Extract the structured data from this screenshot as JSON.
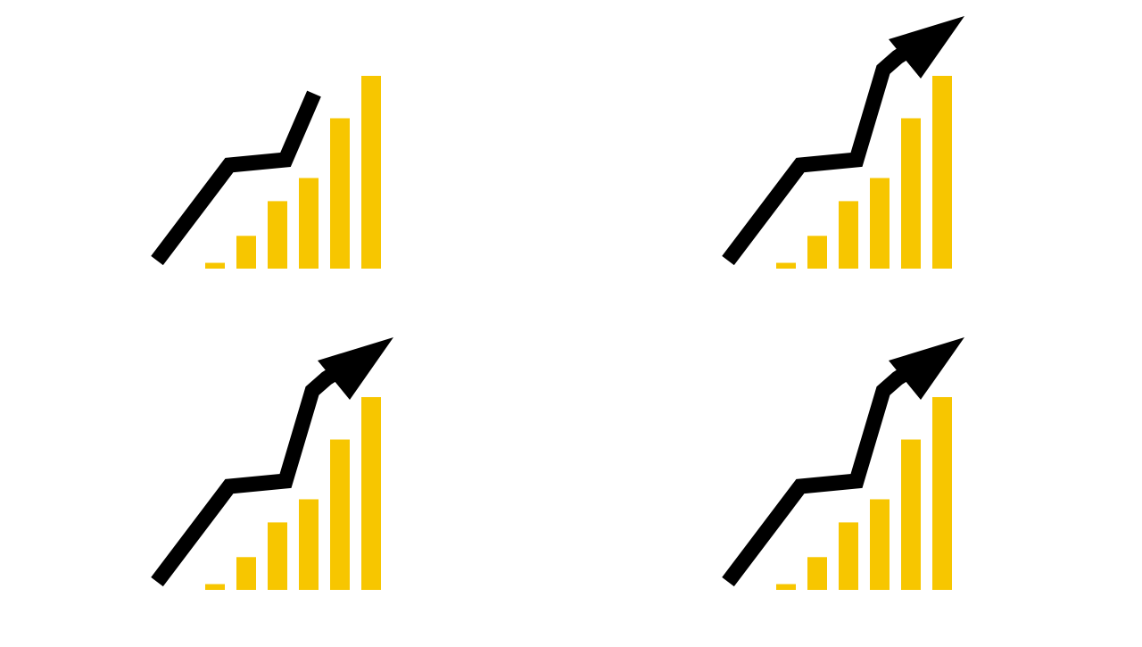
{
  "icons": [
    {
      "name": "growth-chart-icon-partial",
      "bar_levels": [
        0.03,
        0.17,
        0.35,
        0.47,
        0.78,
        1.0
      ],
      "trend_line": "partial",
      "arrowhead": false
    },
    {
      "name": "growth-chart-icon-arrow",
      "bar_levels": [
        0.03,
        0.17,
        0.35,
        0.47,
        0.78,
        1.0
      ],
      "trend_line": "complete",
      "arrowhead": true
    },
    {
      "name": "growth-chart-icon-arrow",
      "bar_levels": [
        0.03,
        0.17,
        0.35,
        0.47,
        0.78,
        1.0
      ],
      "trend_line": "complete",
      "arrowhead": true
    },
    {
      "name": "growth-chart-icon-arrow",
      "bar_levels": [
        0.03,
        0.17,
        0.35,
        0.47,
        0.78,
        1.0
      ],
      "trend_line": "complete",
      "arrowhead": true
    }
  ],
  "colors": {
    "background": "#ffffff",
    "bars": "#f7c600",
    "trend_line": "#000000"
  }
}
